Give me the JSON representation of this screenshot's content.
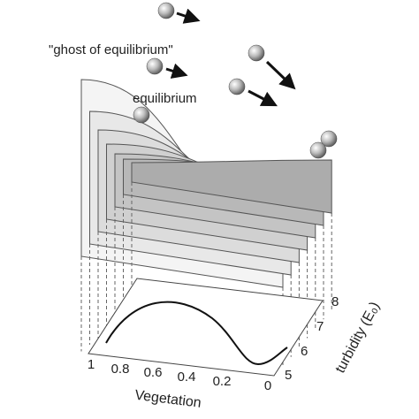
{
  "labels": {
    "ghost": "\"ghost of equilibrium\"",
    "equilibrium": "equilibrium"
  },
  "vegetation_axis": {
    "label": "Vegetation",
    "ticks": [
      "1",
      "0.8",
      "0.6",
      "0.4",
      "0.2",
      "0"
    ]
  },
  "turbidity_axis": {
    "label": "turbidity (E₀)",
    "ticks": [
      "5",
      "6",
      "7",
      "8"
    ]
  }
}
